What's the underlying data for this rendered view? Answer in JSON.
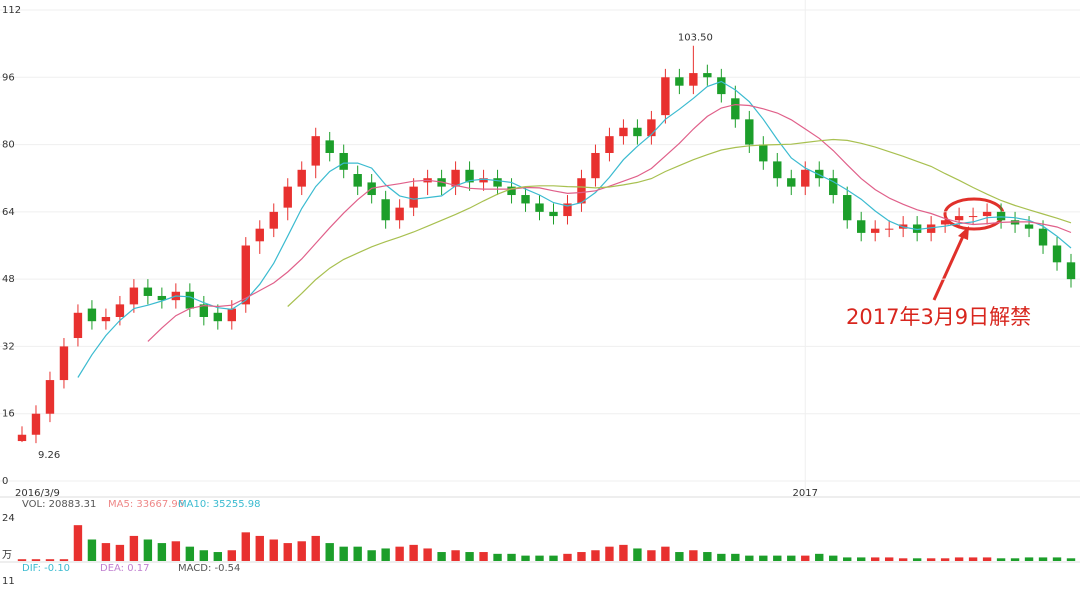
{
  "chart_data": [
    {
      "type": "candlestick",
      "categories": [
        "2016/3/9",
        null,
        null,
        null,
        null,
        null,
        null,
        null,
        null,
        null,
        null,
        null,
        null,
        null,
        null,
        null,
        null,
        null,
        null,
        null,
        null,
        null,
        null,
        null,
        null,
        null,
        null,
        null,
        null,
        null,
        null,
        null,
        null,
        null,
        null,
        null,
        null,
        null,
        null,
        null,
        null,
        null,
        null,
        null,
        null,
        null,
        null,
        null,
        null,
        null,
        null,
        null,
        null,
        null,
        null,
        null,
        "2017",
        null,
        null,
        null,
        null,
        null,
        null,
        null,
        null,
        null,
        null,
        null,
        null,
        null,
        null,
        null,
        null,
        null,
        null,
        null
      ],
      "open": [
        9.5,
        11,
        16,
        24,
        34,
        41,
        38,
        39,
        42,
        46,
        44,
        43,
        45,
        42,
        40,
        38,
        42,
        57,
        60,
        65,
        70,
        75,
        81,
        78,
        73,
        71,
        67,
        62,
        65,
        71,
        72,
        70,
        74,
        71,
        72,
        70,
        68,
        66,
        64,
        63,
        66,
        72,
        78,
        82,
        84,
        82,
        87,
        96,
        94,
        97,
        96,
        91,
        86,
        80,
        76,
        72,
        70,
        74,
        72,
        68,
        62,
        59,
        60,
        60,
        61,
        59,
        61,
        62,
        63,
        63,
        64,
        62,
        61,
        60,
        56,
        52
      ],
      "high": [
        13,
        18,
        26,
        34,
        42,
        43,
        41,
        44,
        48,
        48,
        46,
        47,
        47,
        44,
        42,
        43,
        58,
        62,
        66,
        72,
        76,
        84,
        83,
        80,
        75,
        73,
        69,
        67,
        72,
        74,
        74,
        76,
        76,
        74,
        74,
        72,
        70,
        68,
        66,
        68,
        74,
        80,
        84,
        86,
        86,
        88,
        98,
        98,
        103.5,
        99,
        98,
        94,
        88,
        82,
        78,
        74,
        76,
        76,
        74,
        70,
        64,
        62,
        62,
        63,
        63,
        63,
        64,
        65,
        65,
        66,
        66,
        64,
        63,
        62,
        58,
        54
      ],
      "low": [
        9.26,
        9,
        14,
        22,
        32,
        36,
        36,
        37,
        40,
        42,
        41,
        41,
        39,
        37,
        36,
        36,
        40,
        54,
        58,
        62,
        68,
        72,
        76,
        72,
        68,
        66,
        60,
        60,
        63,
        68,
        68,
        68,
        69,
        69,
        68,
        66,
        64,
        62,
        61,
        61,
        64,
        70,
        76,
        80,
        80,
        80,
        85,
        92,
        92,
        94,
        90,
        84,
        78,
        74,
        70,
        68,
        68,
        70,
        66,
        60,
        57,
        57,
        58,
        58,
        57,
        57,
        59,
        60,
        61,
        61,
        60,
        59,
        58,
        54,
        50,
        46
      ],
      "close": [
        11,
        16,
        24,
        32,
        40,
        38,
        39,
        42,
        46,
        44,
        43,
        45,
        41,
        39,
        38,
        41,
        56,
        60,
        64,
        70,
        74,
        82,
        78,
        74,
        70,
        68,
        62,
        65,
        70,
        72,
        70,
        74,
        71,
        72,
        70,
        68,
        66,
        64,
        63,
        66,
        72,
        78,
        82,
        84,
        82,
        86,
        96,
        94,
        97,
        96,
        92,
        86,
        80,
        76,
        72,
        70,
        74,
        72,
        68,
        62,
        59,
        60,
        60,
        61,
        59,
        61,
        62,
        63,
        63,
        64,
        62,
        61,
        60,
        56,
        52,
        48
      ],
      "up_color": "#e8312f",
      "down_color": "#1c9e2a",
      "series": [
        {
          "color": "#3bbbd0",
          "values": [
            null,
            null,
            null,
            null,
            24.6,
            30,
            34.6,
            38.2,
            41,
            41.8,
            42.8,
            44,
            43.8,
            42.4,
            41.2,
            40.8,
            43,
            46.8,
            51.8,
            58.2,
            64.8,
            70,
            73.6,
            75.6,
            75.6,
            74.4,
            70.4,
            67.8,
            67,
            67.4,
            67.8,
            70.2,
            71.4,
            71.8,
            71.4,
            71,
            69.4,
            68,
            66.2,
            65.4,
            66.2,
            68.6,
            72.2,
            76.4,
            79.6,
            82.4,
            86,
            88.4,
            91,
            93.8,
            95,
            93,
            90.2,
            86,
            81.2,
            76.8,
            74.4,
            72.8,
            71.2,
            69.2,
            67,
            64.2,
            61.8,
            60.4,
            59.8,
            60.2,
            60.6,
            61.2,
            61.6,
            62.6,
            62.8,
            62.6,
            62,
            60.6,
            58.2,
            55.4
          ]
        },
        {
          "color": "#e0608a",
          "values": [
            null,
            null,
            null,
            null,
            null,
            null,
            null,
            null,
            null,
            33.2,
            36.4,
            39.3,
            41,
            41.7,
            41.5,
            41.8,
            43.5,
            45.3,
            47.1,
            49.7,
            52.8,
            56.5,
            60.2,
            63.7,
            66.9,
            69.6,
            70.2,
            70.7,
            71.3,
            71.5,
            71.1,
            70.3,
            69.6,
            69.4,
            69.4,
            69.4,
            69.8,
            69.7,
            69,
            68.4,
            68.6,
            69,
            70.1,
            71.3,
            72.5,
            74.3,
            77.3,
            80.3,
            83.7,
            86.7,
            88.7,
            89.5,
            89.3,
            88.5,
            87.5,
            85.9,
            83.7,
            81.5,
            78.6,
            75.2,
            71.9,
            69.3,
            67.3,
            65.8,
            64.5,
            63.6,
            62.4,
            61.5,
            61,
            61.2,
            61.5,
            61.6,
            61.6,
            61.1,
            60.4,
            59.1
          ]
        },
        {
          "color": "#a8c050",
          "values": [
            null,
            null,
            null,
            null,
            null,
            null,
            null,
            null,
            null,
            null,
            null,
            null,
            null,
            null,
            null,
            null,
            null,
            null,
            null,
            41.5,
            44.6,
            47.9,
            50.6,
            52.7,
            54.2,
            55.7,
            56.9,
            58,
            59.2,
            60.6,
            62,
            63.4,
            64.9,
            66.6,
            68.2,
            69.5,
            70,
            70.2,
            70.2,
            70,
            69.9,
            69.7,
            69.9,
            70.4,
            71,
            71.9,
            73.6,
            75,
            76.4,
            77.6,
            78.7,
            79.3,
            79.7,
            79.9,
            80,
            80.1,
            80.5,
            80.9,
            81.2,
            81,
            80.3,
            79.4,
            78.3,
            77.2,
            76,
            74.8,
            73.1,
            71.5,
            69.8,
            68.2,
            66.7,
            65.5,
            64.5,
            63.5,
            62.5,
            61.4
          ]
        }
      ],
      "ylim": [
        0,
        112
      ],
      "yticks": [
        0,
        16,
        32,
        48,
        64,
        80,
        96,
        112
      ],
      "grid": true,
      "high_label": "103.50",
      "low_label": "9.26",
      "annotation": "2017年3月9日解禁"
    },
    {
      "type": "bar",
      "values": [
        1,
        1,
        1,
        1,
        20,
        12,
        10,
        9,
        14,
        12,
        10,
        11,
        8,
        6,
        5,
        6,
        16,
        14,
        12,
        10,
        11,
        14,
        10,
        8,
        8,
        6,
        7,
        8,
        9,
        7,
        5,
        6,
        5,
        5,
        4,
        4,
        3,
        3,
        3,
        4,
        5,
        6,
        8,
        9,
        7,
        6,
        8,
        5,
        6,
        5,
        4,
        4,
        3,
        3,
        3,
        3,
        3,
        4,
        3,
        2,
        2,
        2,
        2,
        1.5,
        1.5,
        1.5,
        1.5,
        2,
        2,
        2,
        1.5,
        1.5,
        2,
        2,
        2,
        1.5
      ],
      "ylim": [
        0,
        24
      ],
      "yticks": [
        24
      ],
      "unit_label": "万",
      "legend_texts": [
        "VOL: 20883.31",
        "MA5: 33667.96",
        "MA10: 35255.98"
      ]
    },
    {
      "type": "line",
      "legend_texts": [
        "DIF: -0.10",
        "DEA: 0.17",
        "MACD: -0.54"
      ],
      "yticks": [
        11
      ]
    }
  ]
}
